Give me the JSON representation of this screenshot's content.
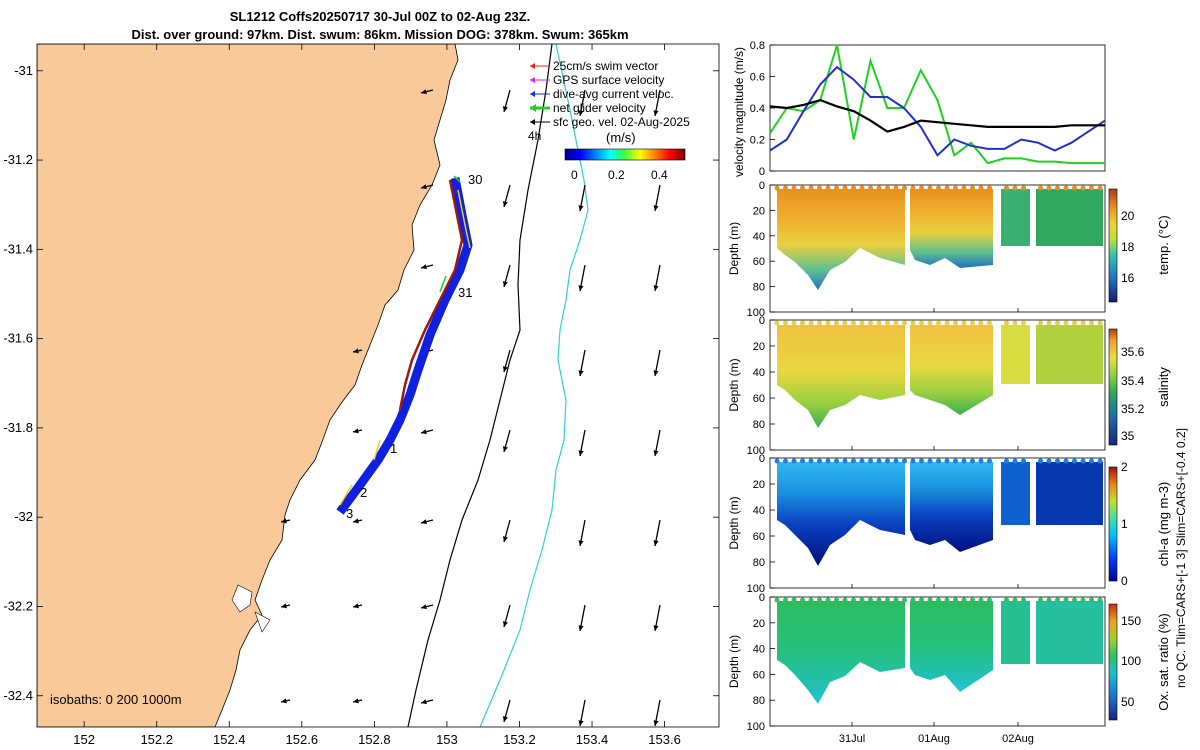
{
  "header": {
    "line1": "SL1212 Coffs20250717 30-Jul 00Z to 02-Aug 23Z.",
    "line2": "Dist. over ground: 97km. Dist. swum: 86km. Mission DOG: 378km. Swum: 365km"
  },
  "map": {
    "lon_ticks": [
      "152",
      "152.2",
      "152.4",
      "152.6",
      "152.8",
      "153",
      "153.2",
      "153.4",
      "153.6"
    ],
    "lat_ticks": [
      "-31",
      "-31.2",
      "-31.4",
      "-31.6",
      "-31.8",
      "-32",
      "-32.2",
      "-32.4"
    ],
    "lon_range": [
      151.87,
      153.75
    ],
    "lat_range": [
      -32.47,
      -30.94
    ],
    "legend": [
      {
        "label": "25cm/s swim vector",
        "color": "#e02020"
      },
      {
        "label": "GPS surface velocity",
        "color": "#e020e0"
      },
      {
        "label": "dive-avg current veloc.",
        "color": "#2020e0"
      },
      {
        "label": "net glider velocity",
        "color": "#20d020"
      },
      {
        "label": "sfc geo. vel. 02-Aug-2025",
        "color": "#000000"
      }
    ],
    "legend_note": "4h",
    "colorbar_label": "(m/s)",
    "colorbar_ticks": [
      "0",
      "0.2",
      "0.4"
    ],
    "isobath_label": "isobaths: 0   200  1000m",
    "day_labels": [
      "30",
      "31",
      "1",
      "2",
      "3"
    ]
  },
  "velocity_panel": {
    "ylabel": "velocity magnitude (m/s)",
    "ylim": [
      0,
      0.8
    ],
    "yticks": [
      "0",
      "0.2",
      "0.4",
      "0.6",
      "0.8"
    ]
  },
  "sections": [
    {
      "label": "temp. (°C)",
      "cticks": [
        "16",
        "18",
        "20"
      ]
    },
    {
      "label": "salinity",
      "cticks": [
        "35",
        "35.2",
        "35.4",
        "35.6"
      ]
    },
    {
      "label": "chl-a (mg m-3)",
      "cticks": [
        "0",
        "1",
        "2"
      ]
    },
    {
      "label": "Ox. sat. ratio (%)",
      "cticks": [
        "50",
        "100",
        "150"
      ]
    }
  ],
  "depth_ylabel": "Depth (m)",
  "depth_ticks": [
    "0",
    "20",
    "40",
    "60",
    "80",
    "100"
  ],
  "time_ticks": [
    "31Jul",
    "01Aug",
    "02Aug"
  ],
  "qc_note": "no QC. Tlim=CARS+[-1 3] Slim=CARS+[-0.4 0.2]",
  "chart_data": {
    "type": "line",
    "title": "velocity magnitude",
    "ylabel": "velocity magnitude (m/s)",
    "x_days": [
      0,
      0.2,
      0.4,
      0.6,
      0.8,
      1.0,
      1.2,
      1.4,
      1.6,
      1.8,
      2.0,
      2.2,
      2.4,
      2.6,
      2.8,
      3.0,
      3.2,
      3.4,
      3.6,
      3.8,
      4.0
    ],
    "ylim": [
      0,
      0.8
    ],
    "series": [
      {
        "name": "blue (dive-avg current)",
        "color": "#2030d0",
        "values": [
          0.13,
          0.2,
          0.38,
          0.55,
          0.66,
          0.58,
          0.47,
          0.47,
          0.4,
          0.28,
          0.1,
          0.2,
          0.16,
          0.14,
          0.14,
          0.2,
          0.18,
          0.13,
          0.18,
          0.25,
          0.32
        ]
      },
      {
        "name": "green (net glider)",
        "color": "#20d020",
        "values": [
          0.24,
          0.4,
          0.38,
          0.45,
          0.8,
          0.2,
          0.7,
          0.4,
          0.4,
          0.64,
          0.45,
          0.1,
          0.18,
          0.05,
          0.08,
          0.08,
          0.06,
          0.06,
          0.05,
          0.05,
          0.05
        ]
      },
      {
        "name": "black (surface geostrophic)",
        "color": "#000000",
        "values": [
          0.41,
          0.4,
          0.42,
          0.45,
          0.41,
          0.38,
          0.32,
          0.25,
          0.28,
          0.32,
          0.31,
          0.3,
          0.29,
          0.28,
          0.28,
          0.28,
          0.28,
          0.28,
          0.29,
          0.29,
          0.29
        ]
      }
    ]
  }
}
